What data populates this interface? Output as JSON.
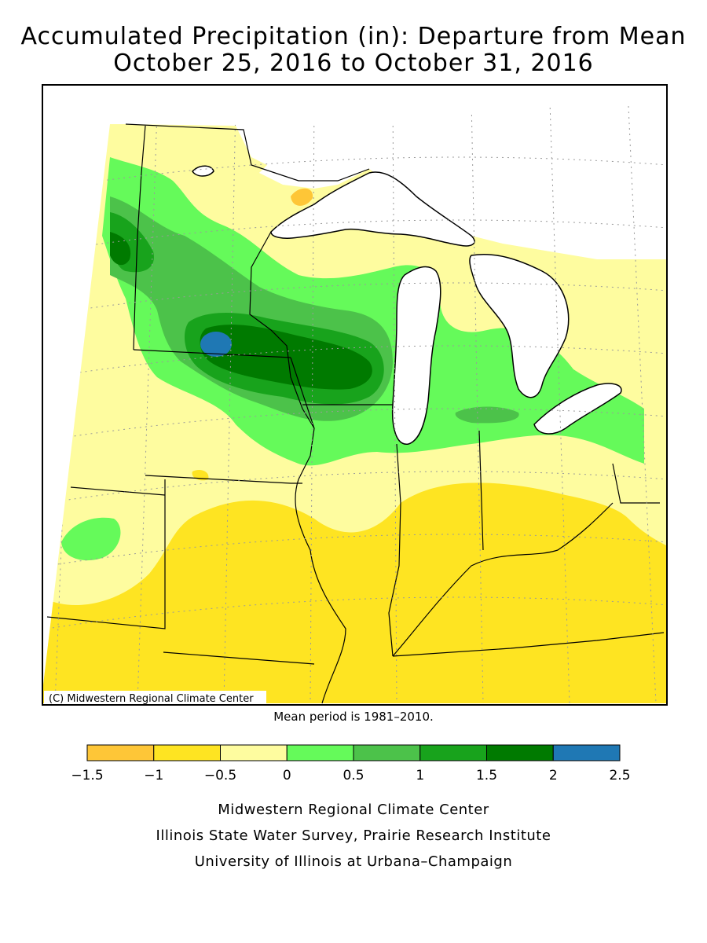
{
  "title": {
    "line1": "Accumulated Precipitation (in): Departure from Mean",
    "line2": "October 25, 2016 to October 31, 2016"
  },
  "map": {
    "copyright": "(C) Midwestern Regional Climate Center",
    "region": "Upper Midwest / Great Lakes",
    "features": [
      "Lake Superior",
      "Lake Michigan",
      "Lake Huron",
      "Lake Erie"
    ]
  },
  "mean_note": "Mean period is 1981–2010.",
  "legend": {
    "ticks": [
      "−1.5",
      "−1",
      "−0.5",
      "0",
      "0.5",
      "1",
      "1.5",
      "2",
      "2.5"
    ],
    "bins": [
      {
        "range": "-1.5 to -1",
        "color": "#fec637"
      },
      {
        "range": "-1 to -0.5",
        "color": "#fee422"
      },
      {
        "range": "-0.5 to 0",
        "color": "#fefc9f"
      },
      {
        "range": "0 to 0.5",
        "color": "#65fa5a"
      },
      {
        "range": "0.5 to 1",
        "color": "#4cc24a"
      },
      {
        "range": "1 to 1.5",
        "color": "#18a31c"
      },
      {
        "range": "1.5 to 2",
        "color": "#007a00"
      },
      {
        "range": "2 to 2.5",
        "color": "#1f78b4"
      }
    ]
  },
  "credits": [
    "Midwestern Regional Climate Center",
    "Illinois State Water Survey, Prairie Research Institute",
    "University of Illinois at Urbana–Champaign"
  ]
}
